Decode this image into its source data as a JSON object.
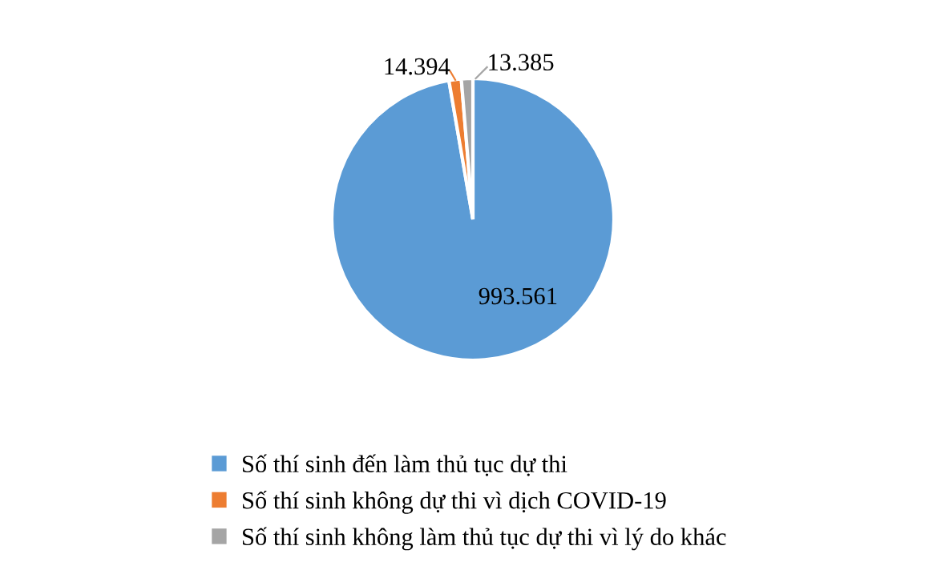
{
  "chart_data": {
    "type": "pie",
    "categories": [
      "Số thí sinh đến làm thủ tục dự thi",
      "Số thí sinh không dự thi vì dịch COVID-19",
      "Số thí sinh không làm thủ tục dự thi vì lý do khác"
    ],
    "values": [
      993561,
      14394,
      13385
    ],
    "value_labels": [
      "993.561",
      "14.394",
      "13.385"
    ],
    "colors": [
      "#5b9bd5",
      "#ed7d31",
      "#a5a5a5"
    ],
    "legend": "bottom"
  }
}
